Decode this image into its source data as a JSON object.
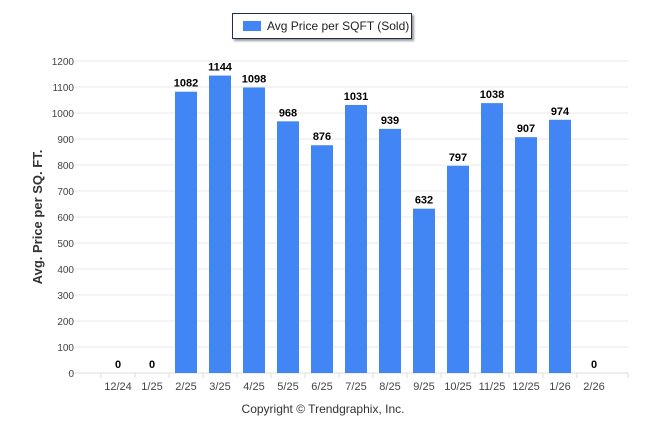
{
  "chart_data": {
    "type": "bar",
    "title": "",
    "legend": [
      "Avg Price per SQFT (Sold)"
    ],
    "legend_position": "top",
    "xlabel": "",
    "ylabel": "Avg. Price per SQ. FT.",
    "ylim": [
      0,
      1200
    ],
    "yticks": [
      0,
      100,
      200,
      300,
      400,
      500,
      600,
      700,
      800,
      900,
      1000,
      1100,
      1200
    ],
    "grid": true,
    "categories": [
      "12/24",
      "1/25",
      "2/25",
      "3/25",
      "4/25",
      "5/25",
      "6/25",
      "7/25",
      "8/25",
      "9/25",
      "10/25",
      "11/25",
      "12/25",
      "1/26",
      "2/26"
    ],
    "series": [
      {
        "name": "Avg Price per SQFT (Sold)",
        "values": [
          0,
          0,
          1082,
          1144,
          1098,
          968,
          876,
          1031,
          939,
          632,
          797,
          1038,
          907,
          974,
          0
        ]
      }
    ],
    "bar_color": "#4285f4"
  },
  "footer": {
    "copyright": "Copyright © Trendgraphix, Inc."
  }
}
